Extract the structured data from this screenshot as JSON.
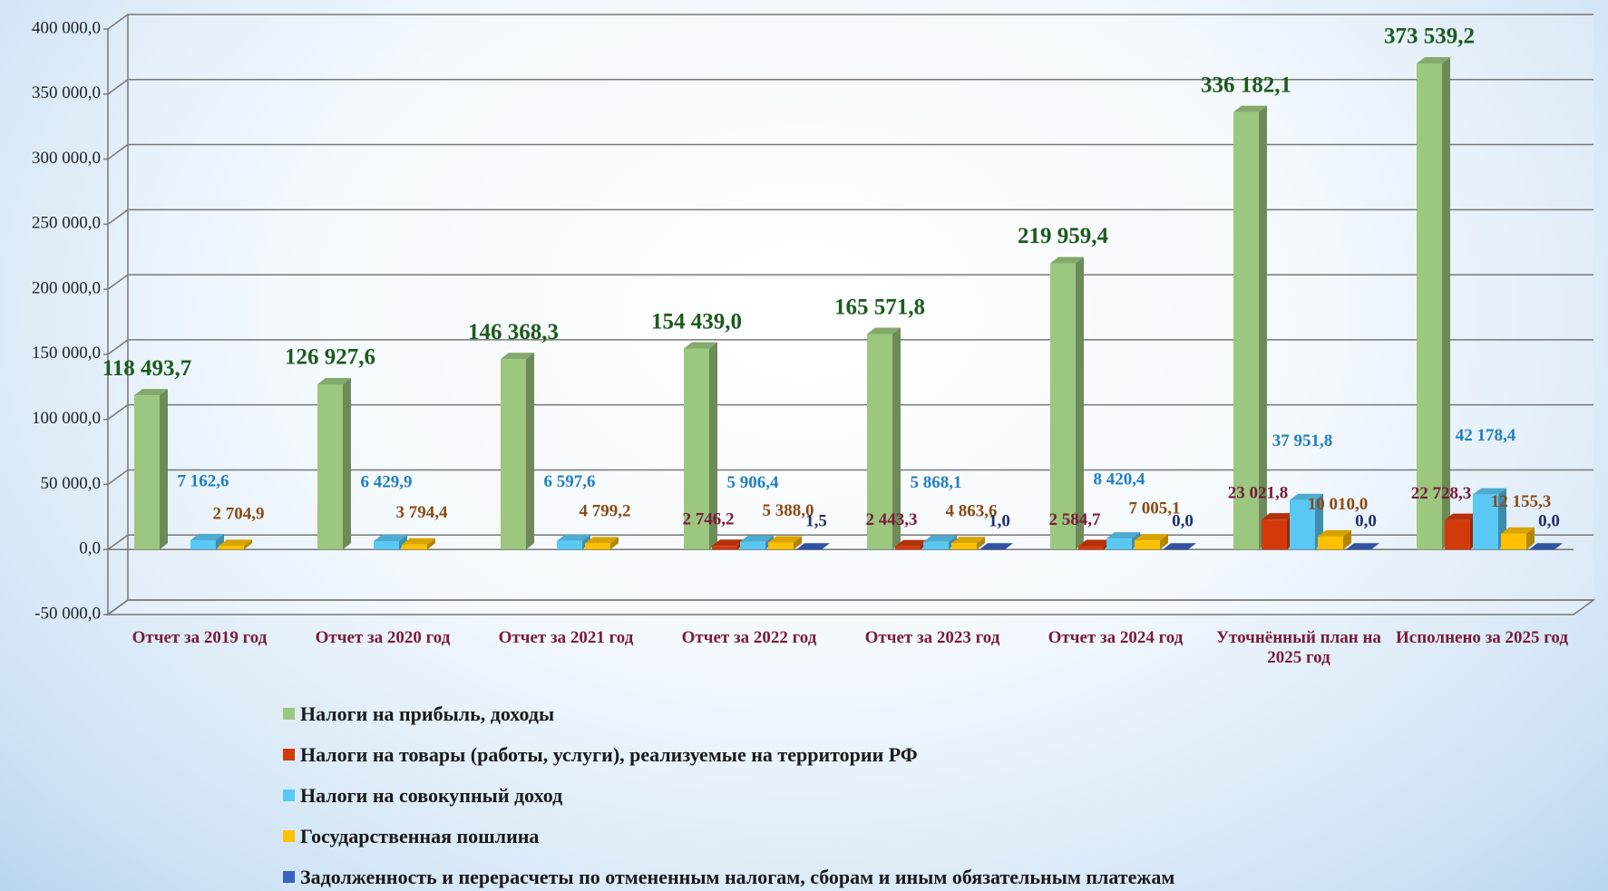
{
  "chart_data": {
    "type": "bar3d",
    "categories": [
      "Отчет за  2019 год",
      "Отчет за  2020 год",
      "Отчет за  2021 год",
      "Отчет за  2022 год",
      "Отчет за  2023 год",
      "Отчет за  2024 год",
      "Уточнённый план на 2025 год",
      "Исполнено за  2025 год"
    ],
    "ylim": [
      -50000,
      400000
    ],
    "yticks": [
      {
        "value": -50000,
        "label": "-50 000,0"
      },
      {
        "value": 0,
        "label": "0,0"
      },
      {
        "value": 50000,
        "label": "50 000,0"
      },
      {
        "value": 100000,
        "label": "100 000,0"
      },
      {
        "value": 150000,
        "label": "150 000,0"
      },
      {
        "value": 200000,
        "label": "200 000,0"
      },
      {
        "value": 250000,
        "label": "250 000,0"
      },
      {
        "value": 300000,
        "label": "300 000,0"
      },
      {
        "value": 350000,
        "label": "350 000,0"
      },
      {
        "value": 400000,
        "label": "400 000,0"
      }
    ],
    "grid": true,
    "series": [
      {
        "name": "Налоги на прибыль, доходы",
        "color": "#9bc77f",
        "label_color": "#1e5a1e",
        "values": [
          118493.7,
          126927.6,
          146368.3,
          154439.0,
          165571.8,
          219959.4,
          336182.1,
          373539.2
        ],
        "value_labels": [
          "118 493,7",
          "126 927,6",
          "146 368,3",
          "154 439,0",
          "165 571,8",
          "219 959,4",
          "336 182,1",
          "373 539,2"
        ]
      },
      {
        "name": "Налоги на товары (работы, услуги), реализуемые на территории РФ",
        "color": "#d23a0c",
        "label_color": "#7a1a3a",
        "values": [
          null,
          null,
          null,
          2746.2,
          2443.3,
          2584.7,
          23021.8,
          22728.3
        ],
        "value_labels": [
          null,
          null,
          null,
          "2 746,2",
          "2 443,3",
          "2 584,7",
          "23 021,8",
          "22 728,3"
        ]
      },
      {
        "name": "Налоги на совокупный доход",
        "color": "#5ac8f5",
        "label_color": "#1f7fc4",
        "values": [
          7162.6,
          6429.9,
          6597.6,
          5906.4,
          5868.1,
          8420.4,
          37951.8,
          42178.4
        ],
        "value_labels": [
          "7 162,6",
          "6 429,9",
          "6 597,6",
          "5 906,4",
          "5 868,1",
          "8 420,4",
          "37 951,8",
          "42 178,4"
        ]
      },
      {
        "name": "Государственная пошлина",
        "color": "#ffc000",
        "label_color": "#8b4a13",
        "values": [
          2704.9,
          3794.4,
          4799.2,
          5388.0,
          4863.6,
          7005.1,
          10010.0,
          12155.3
        ],
        "value_labels": [
          "2 704,9",
          "3 794,4",
          "4 799,2",
          "5 388,0",
          "4 863,6",
          "7 005,1",
          "10 010,0",
          "12 155,3"
        ]
      },
      {
        "name": "Задолженность и перерасчеты по отмененным налогам, сборам и иным обязательным платежам",
        "color": "#3a62c0",
        "label_color": "#1f2f6b",
        "values": [
          null,
          null,
          null,
          1.5,
          1.0,
          0.0,
          0.0,
          0.0
        ],
        "value_labels": [
          null,
          null,
          null,
          "1,5",
          "1,0",
          "0,0",
          "0,0",
          "0,0"
        ]
      }
    ]
  }
}
